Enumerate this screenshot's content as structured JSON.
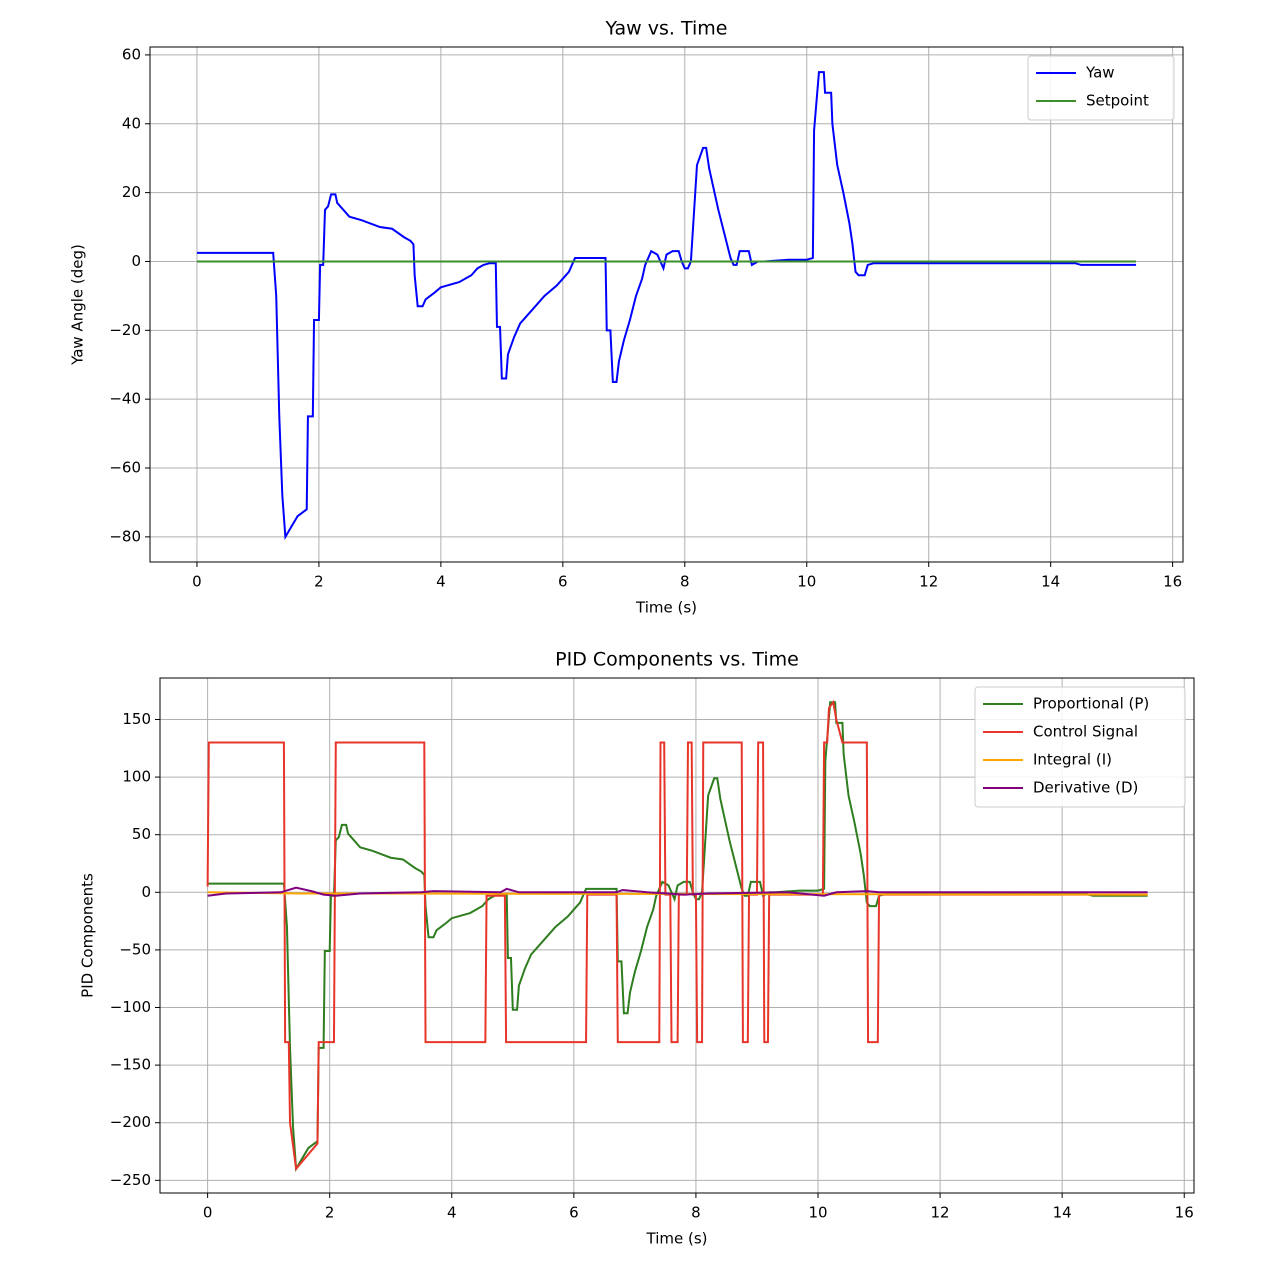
{
  "chart_data": [
    {
      "type": "line",
      "title": "Yaw vs. Time",
      "x_label": "Time (s)",
      "y_label": "Yaw Angle (deg)",
      "xlim": [
        -0.77,
        16.17
      ],
      "ylim": [
        -87.3,
        62.3
      ],
      "xticks": [
        0,
        2,
        4,
        6,
        8,
        10,
        12,
        14,
        16
      ],
      "yticks": [
        {
          "value": -80,
          "label": "−80"
        },
        {
          "value": -60,
          "label": "−60"
        },
        {
          "value": -40,
          "label": "−40"
        },
        {
          "value": -20,
          "label": "−20"
        },
        0,
        20,
        40,
        60
      ],
      "grid": true,
      "legend": "upper right",
      "series": [
        {
          "name": "Yaw",
          "color": "#0000ff",
          "x": [
            0,
            1.25,
            1.3,
            1.35,
            1.4,
            1.45,
            1.55,
            1.65,
            1.8,
            1.82,
            1.9,
            1.92,
            2.0,
            2.02,
            2.07,
            2.1,
            2.15,
            2.2,
            2.27,
            2.3,
            2.4,
            2.5,
            2.7,
            3.0,
            3.2,
            3.4,
            3.5,
            3.55,
            3.57,
            3.62,
            3.7,
            3.75,
            3.9,
            4.0,
            4.3,
            4.5,
            4.6,
            4.7,
            4.8,
            4.9,
            4.92,
            4.97,
            5.0,
            5.07,
            5.1,
            5.2,
            5.3,
            5.5,
            5.7,
            5.9,
            6.0,
            6.1,
            6.2,
            6.7,
            6.72,
            6.78,
            6.82,
            6.88,
            6.92,
            7.0,
            7.1,
            7.2,
            7.3,
            7.35,
            7.45,
            7.55,
            7.6,
            7.65,
            7.7,
            7.8,
            7.9,
            7.95,
            8.0,
            8.05,
            8.1,
            8.2,
            8.3,
            8.35,
            8.4,
            8.45,
            8.55,
            8.65,
            8.75,
            8.8,
            8.85,
            8.9,
            9.05,
            9.1,
            9.2,
            9.3,
            9.7,
            10.0,
            10.1,
            10.12,
            10.2,
            10.28,
            10.3,
            10.4,
            10.42,
            10.5,
            10.6,
            10.7,
            10.75,
            10.8,
            10.85,
            10.95,
            11.0,
            11.1,
            14.4,
            14.5,
            15.4
          ],
          "values": [
            2.5,
            2.5,
            -10,
            -45,
            -68,
            -80,
            -77,
            -74,
            -72,
            -45,
            -45,
            -17,
            -17,
            -1,
            -1,
            15,
            16,
            19.5,
            19.5,
            17,
            15,
            13,
            12,
            10,
            9.5,
            7,
            6,
            5,
            -4,
            -13,
            -13,
            -11,
            -9,
            -7.5,
            -6,
            -4,
            -2,
            -1,
            -0.5,
            -0.5,
            -19,
            -19,
            -34,
            -34,
            -27,
            -22,
            -18,
            -14,
            -10,
            -7,
            -5,
            -3,
            1,
            1,
            -20,
            -20,
            -35,
            -35,
            -29,
            -23,
            -17,
            -10,
            -5,
            -1,
            3,
            2,
            0,
            -2,
            2,
            3,
            3,
            0,
            -2,
            -2,
            0,
            28,
            33,
            33,
            27,
            23,
            15,
            8,
            1,
            -1,
            -1,
            3,
            3,
            -1,
            0,
            0,
            0.5,
            0.5,
            1,
            38,
            55,
            55,
            49,
            49,
            40,
            28,
            20,
            11,
            5,
            -3,
            -4,
            -4,
            -1,
            -0.5,
            -0.5,
            -1,
            -1
          ]
        },
        {
          "name": "Setpoint",
          "color": "#3a8f2a",
          "x": [
            0,
            15.4
          ],
          "values": [
            0,
            0
          ]
        }
      ]
    },
    {
      "type": "line",
      "title": "PID Components vs. Time",
      "x_label": "Time (s)",
      "y_label": "PID Components",
      "xlim": [
        -0.78,
        16.16
      ],
      "ylim": [
        -261,
        186
      ],
      "xticks": [
        0,
        2,
        4,
        6,
        8,
        10,
        12,
        14,
        16
      ],
      "yticks": [
        {
          "value": -250,
          "label": "−250"
        },
        {
          "value": -200,
          "label": "−200"
        },
        {
          "value": -150,
          "label": "−150"
        },
        {
          "value": -100,
          "label": "−100"
        },
        {
          "value": -50,
          "label": "−50"
        },
        0,
        50,
        100,
        150
      ],
      "grid": true,
      "legend": "upper right",
      "series": [
        {
          "name": "Proportional (P)",
          "color": "#2e7d1e",
          "x": [
            0,
            1.25,
            1.3,
            1.35,
            1.4,
            1.45,
            1.55,
            1.65,
            1.8,
            1.82,
            1.9,
            1.92,
            2.0,
            2.02,
            2.07,
            2.1,
            2.15,
            2.2,
            2.27,
            2.3,
            2.4,
            2.5,
            2.7,
            3.0,
            3.2,
            3.4,
            3.5,
            3.55,
            3.57,
            3.62,
            3.7,
            3.75,
            3.9,
            4.0,
            4.3,
            4.5,
            4.6,
            4.7,
            4.8,
            4.9,
            4.92,
            4.97,
            5.0,
            5.07,
            5.1,
            5.2,
            5.3,
            5.5,
            5.7,
            5.9,
            6.0,
            6.1,
            6.2,
            6.7,
            6.72,
            6.78,
            6.82,
            6.88,
            6.92,
            7.0,
            7.1,
            7.2,
            7.3,
            7.35,
            7.45,
            7.55,
            7.6,
            7.65,
            7.7,
            7.8,
            7.9,
            7.95,
            8.0,
            8.05,
            8.1,
            8.2,
            8.3,
            8.35,
            8.4,
            8.45,
            8.55,
            8.65,
            8.75,
            8.8,
            8.85,
            8.9,
            9.05,
            9.1,
            9.2,
            9.3,
            9.7,
            10.0,
            10.1,
            10.12,
            10.2,
            10.28,
            10.3,
            10.4,
            10.42,
            10.5,
            10.6,
            10.7,
            10.75,
            10.8,
            10.85,
            10.95,
            11.0,
            11.1,
            14.4,
            14.5,
            15.4
          ],
          "values": [
            7.5,
            7.5,
            -30,
            -135,
            -204,
            -240,
            -231,
            -222,
            -216,
            -135,
            -135,
            -51,
            -51,
            -3,
            -3,
            45,
            48,
            58.5,
            58.5,
            51,
            45,
            39,
            36,
            30,
            28.5,
            21,
            18,
            15,
            -12,
            -39,
            -39,
            -33,
            -27,
            -22.5,
            -18,
            -12,
            -6,
            -3,
            -1.5,
            -1.5,
            -57,
            -57,
            -102,
            -102,
            -81,
            -66,
            -54,
            -42,
            -30,
            -21,
            -15,
            -9,
            3,
            3,
            -60,
            -60,
            -105,
            -105,
            -87,
            -69,
            -51,
            -30,
            -15,
            -3,
            9,
            6,
            0,
            -6,
            6,
            9,
            9,
            0,
            -6,
            -6,
            0,
            84,
            99,
            99,
            81,
            69,
            45,
            24,
            3,
            -3,
            -3,
            9,
            9,
            -3,
            0,
            0,
            1.5,
            1.5,
            3,
            114,
            165,
            165,
            147,
            147,
            120,
            84,
            60,
            33,
            15,
            -9,
            -12,
            -12,
            -3,
            -1.5,
            -1.5,
            -3,
            -3
          ]
        },
        {
          "name": "Control Signal",
          "color": "#e8352a",
          "x": [
            0,
            0.02,
            1.25,
            1.27,
            1.33,
            1.35,
            1.45,
            1.8,
            1.82,
            2.07,
            2.1,
            3.55,
            3.57,
            4.55,
            4.57,
            4.87,
            4.89,
            6.2,
            6.22,
            6.7,
            6.72,
            7.4,
            7.42,
            7.48,
            7.5,
            7.58,
            7.6,
            7.7,
            7.72,
            7.85,
            7.87,
            7.93,
            7.95,
            8.0,
            8.02,
            8.1,
            8.12,
            8.75,
            8.77,
            8.85,
            8.87,
            9.0,
            9.02,
            9.1,
            9.12,
            9.18,
            9.2,
            10.08,
            10.1,
            10.15,
            10.18,
            10.25,
            10.3,
            10.35,
            10.4,
            10.8,
            10.82,
            10.98,
            11.0,
            15.4
          ],
          "values": [
            5,
            130,
            130,
            -130,
            -130,
            -200,
            -240,
            -218,
            -130,
            -130,
            130,
            130,
            -130,
            -130,
            -3,
            -3,
            -130,
            -130,
            -2,
            -2,
            -130,
            -130,
            130,
            130,
            -2,
            -2,
            -130,
            -130,
            -2,
            -2,
            130,
            130,
            -2,
            -2,
            -130,
            -130,
            130,
            130,
            -130,
            -130,
            -2,
            -2,
            130,
            130,
            -130,
            -130,
            -2,
            -2,
            130,
            130,
            160,
            165,
            150,
            140,
            130,
            130,
            -130,
            -130,
            -2,
            -2
          ]
        },
        {
          "name": "Integral (I)",
          "color": "#ffa500",
          "x": [
            0,
            1.5,
            15.4
          ],
          "values": [
            0,
            -1,
            -2
          ]
        },
        {
          "name": "Derivative (D)",
          "color": "#800080",
          "x": [
            0,
            0.3,
            1.2,
            1.45,
            1.7,
            1.9,
            2.1,
            2.5,
            3.5,
            3.7,
            4.8,
            4.9,
            5.1,
            6.7,
            6.8,
            7.2,
            7.8,
            8.2,
            9.5,
            10.1,
            10.3,
            10.8,
            11,
            15.4
          ],
          "values": [
            -3,
            -1,
            0,
            4,
            1,
            -2,
            -3,
            -1,
            0,
            1,
            0,
            3,
            0,
            0,
            2,
            0,
            -2,
            -1,
            0,
            -3,
            0,
            1,
            0,
            0
          ]
        }
      ]
    }
  ]
}
